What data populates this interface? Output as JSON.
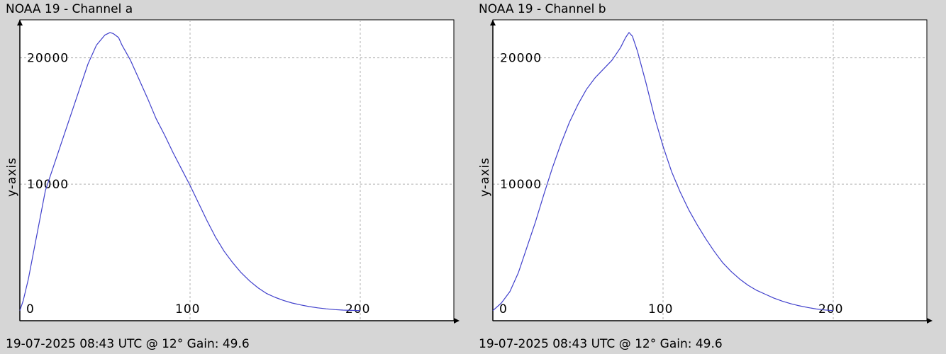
{
  "colors": {
    "background": "#d6d6d6",
    "plot_bg": "#ffffff",
    "line": "#4040cc",
    "grid": "#b0b0b0",
    "axis": "#000000"
  },
  "chart_data": [
    {
      "type": "line",
      "title": "NOAA 19 - Channel a",
      "footer": "19-07-2025 08:43 UTC @ 12° Gain: 49.6",
      "xlabel": "",
      "ylabel": "y-axis",
      "xlim": [
        0,
        255
      ],
      "ylim": [
        -800,
        23000
      ],
      "grid": true,
      "x_ticks": [
        0,
        100,
        200
      ],
      "y_ticks": [
        10000,
        20000
      ],
      "series": [
        {
          "x": [
            0,
            2,
            5,
            10,
            15,
            20,
            25,
            30,
            35,
            40,
            45,
            50,
            53,
            55,
            58,
            60,
            65,
            70,
            75,
            80,
            85,
            90,
            95,
            100,
            105,
            110,
            115,
            120,
            125,
            130,
            135,
            140,
            145,
            150,
            155,
            160,
            165,
            170,
            175,
            180,
            185,
            190,
            195,
            200
          ],
          "y": [
            0,
            800,
            2500,
            6000,
            9500,
            11500,
            13500,
            15500,
            17500,
            19500,
            21000,
            21800,
            22000,
            21900,
            21600,
            21000,
            19800,
            18300,
            16800,
            15200,
            13900,
            12500,
            11200,
            9900,
            8500,
            7100,
            5800,
            4700,
            3800,
            3000,
            2350,
            1800,
            1350,
            1050,
            800,
            600,
            450,
            320,
            220,
            140,
            80,
            40,
            15,
            0
          ]
        }
      ]
    },
    {
      "type": "line",
      "title": "NOAA 19 - Channel b",
      "footer": "19-07-2025 08:43 UTC @ 12° Gain: 49.6",
      "xlabel": "",
      "ylabel": "y-axis",
      "xlim": [
        0,
        255
      ],
      "ylim": [
        -800,
        23000
      ],
      "grid": true,
      "x_ticks": [
        0,
        100,
        200
      ],
      "y_ticks": [
        10000,
        20000
      ],
      "series": [
        {
          "x": [
            0,
            5,
            10,
            15,
            20,
            25,
            30,
            35,
            40,
            45,
            50,
            55,
            60,
            65,
            70,
            75,
            78,
            80,
            82,
            85,
            90,
            95,
            100,
            105,
            110,
            115,
            120,
            125,
            130,
            135,
            140,
            145,
            150,
            155,
            160,
            165,
            170,
            175,
            180,
            185,
            190,
            195,
            200
          ],
          "y": [
            0,
            600,
            1500,
            3000,
            5000,
            7000,
            9200,
            11300,
            13200,
            14900,
            16300,
            17500,
            18400,
            19100,
            19800,
            20800,
            21600,
            22000,
            21700,
            20500,
            18000,
            15300,
            13000,
            11000,
            9400,
            8000,
            6800,
            5700,
            4700,
            3800,
            3100,
            2500,
            2000,
            1600,
            1300,
            1000,
            750,
            550,
            380,
            250,
            130,
            50,
            0
          ]
        }
      ]
    }
  ]
}
